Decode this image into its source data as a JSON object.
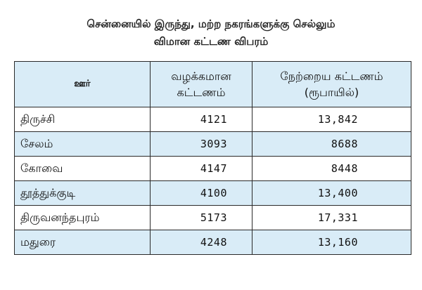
{
  "title": {
    "line1": "சென்னையில் இருந்து, மற்ற நகரங்களுக்கு செல்லும்",
    "line2": "விமான கட்டண விபரம்"
  },
  "table": {
    "headers": {
      "city": "ஊர்",
      "usual_fare_line1": "வழக்கமான",
      "usual_fare_line2": "கட்டணம்",
      "yesterday_fare_line1": "நேற்றைய கட்டணம்",
      "yesterday_fare_line2": "(ரூபாயில்)"
    },
    "rows": [
      {
        "city": "திருச்சி",
        "usual_fare": "4121",
        "yesterday_fare": "13,842"
      },
      {
        "city": "சேலம்",
        "usual_fare": "3093",
        "yesterday_fare": "8688"
      },
      {
        "city": "கோவை",
        "usual_fare": "4147",
        "yesterday_fare": "8448"
      },
      {
        "city": "தூத்துக்குடி",
        "usual_fare": "4100",
        "yesterday_fare": "13,400"
      },
      {
        "city": "திருவனந்தபுரம்",
        "usual_fare": "5173",
        "yesterday_fare": "17,331"
      },
      {
        "city": "மதுரை",
        "usual_fare": "4248",
        "yesterday_fare": "13,160"
      }
    ]
  },
  "colors": {
    "stripe": "#d9ecf7",
    "border": "#2a2a2a",
    "text": "#111111"
  }
}
